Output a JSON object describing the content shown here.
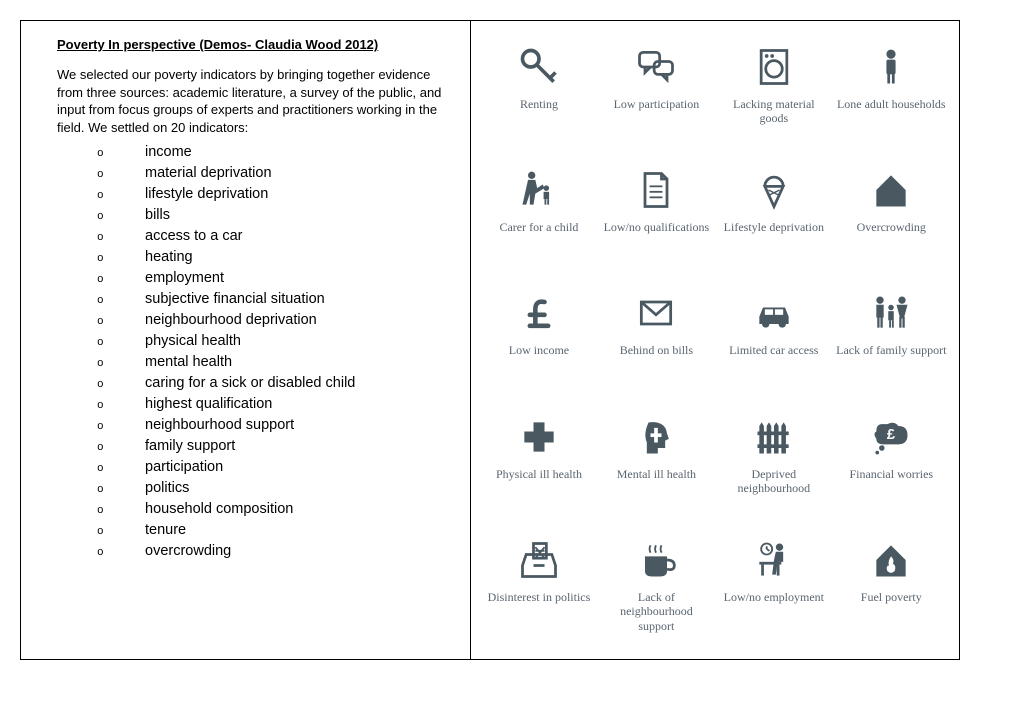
{
  "title": "Poverty In perspective (Demos- Claudia Wood 2012)",
  "intro": "We selected our poverty indicators by bringing together evidence from three sources: academic literature, a survey of the public, and input from focus groups of experts and practitioners working in the field. We settled on 20 indicators:",
  "indicators": [
    "income",
    "material deprivation",
    "lifestyle deprivation",
    "bills",
    "access to a car",
    "heating",
    "employment",
    "subjective financial situation",
    "neighbourhood deprivation",
    "physical health",
    "mental health",
    "caring for a sick or disabled child",
    "highest qualification",
    "neighbourhood support",
    "family support",
    "participation",
    "politics",
    "household composition",
    "tenure",
    "overcrowding"
  ],
  "icon_color": "#4a5862",
  "label_color": "#5a6570",
  "icons": [
    {
      "name": "key-icon",
      "label": "Renting"
    },
    {
      "name": "speech-bubbles-icon",
      "label": "Low participation"
    },
    {
      "name": "washing-machine-icon",
      "label": "Lacking material goods"
    },
    {
      "name": "lone-adult-icon",
      "label": "Lone adult households"
    },
    {
      "name": "carer-child-icon",
      "label": "Carer for a child"
    },
    {
      "name": "document-icon",
      "label": "Low/no qualifications"
    },
    {
      "name": "ice-cream-icon",
      "label": "Lifestyle deprivation"
    },
    {
      "name": "house-icon",
      "label": "Overcrowding"
    },
    {
      "name": "pound-icon",
      "label": "Low income"
    },
    {
      "name": "envelope-icon",
      "label": "Behind on bills"
    },
    {
      "name": "car-icon",
      "label": "Limited car access"
    },
    {
      "name": "family-icon",
      "label": "Lack of family support"
    },
    {
      "name": "medical-cross-icon",
      "label": "Physical ill health"
    },
    {
      "name": "head-brain-icon",
      "label": "Mental ill health"
    },
    {
      "name": "fence-icon",
      "label": "Deprived neighbourhood"
    },
    {
      "name": "thought-pound-icon",
      "label": "Financial worries"
    },
    {
      "name": "ballot-box-icon",
      "label": "Disinterest in politics"
    },
    {
      "name": "cup-icon",
      "label": "Lack of neighbourhood support"
    },
    {
      "name": "desk-person-icon",
      "label": "Low/no employment"
    },
    {
      "name": "fuel-house-icon",
      "label": "Fuel poverty"
    }
  ]
}
